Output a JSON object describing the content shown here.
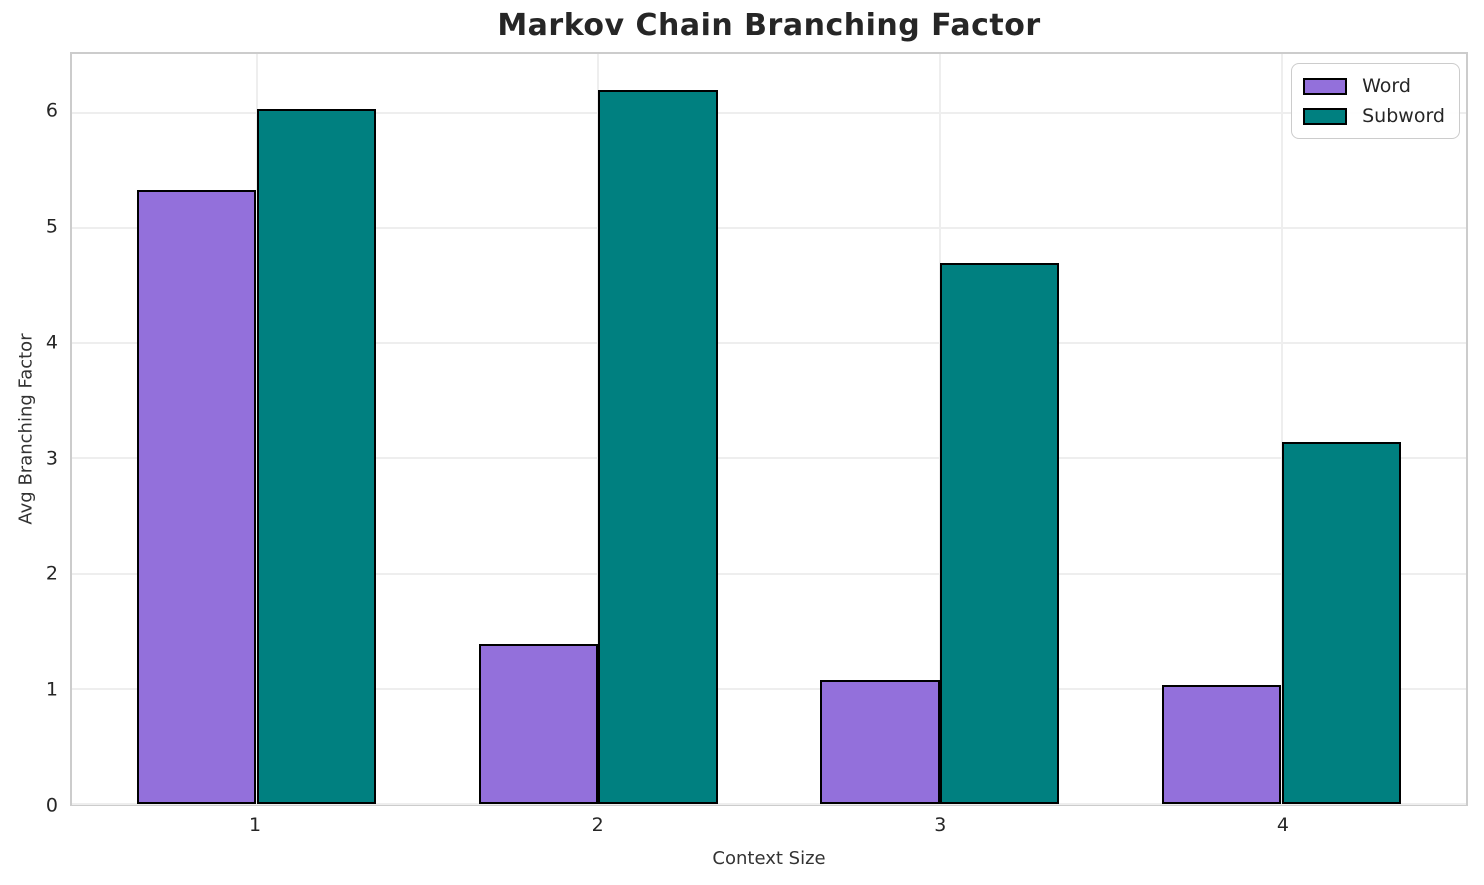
{
  "chart_data": {
    "type": "bar",
    "title": "Markov Chain Branching Factor",
    "xlabel": "Context Size",
    "ylabel": "Avg Branching Factor",
    "categories": [
      "1",
      "2",
      "3",
      "4"
    ],
    "x": [
      1,
      2,
      3,
      4
    ],
    "series": [
      {
        "name": "Word",
        "color": "#9370DB",
        "values": [
          5.33,
          1.39,
          1.08,
          1.03
        ]
      },
      {
        "name": "Subword",
        "color": "#008080",
        "values": [
          6.03,
          6.2,
          4.7,
          3.14
        ]
      }
    ],
    "bar_width": 0.35,
    "bar_edge_color": "#000000",
    "xlim": [
      0.46,
      4.54
    ],
    "ylim": [
      0,
      6.51
    ],
    "yticks": [
      0,
      1,
      2,
      3,
      4,
      5,
      6
    ],
    "grid": true,
    "legend_position": "upper right"
  },
  "styles": {
    "text_color": "#262626",
    "spine_color": "#cccccc",
    "grid_color": "#eeeeee",
    "background": "#ffffff"
  }
}
